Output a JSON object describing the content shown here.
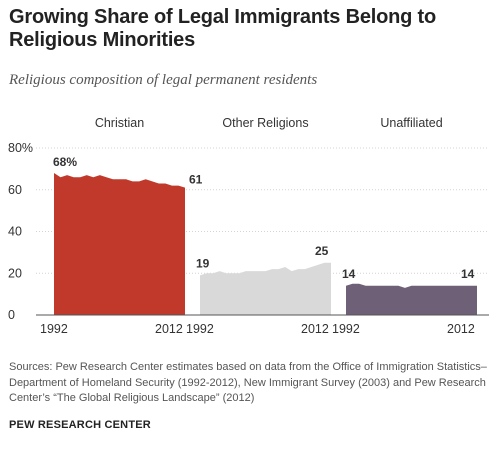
{
  "title": "Growing Share of Legal Immigrants Belong to Religious Minorities",
  "subtitle": "Religious composition of legal permanent residents",
  "source": "Sources: Pew Research Center estimates based on data from the Office of Immigration Statistics–Department of Homeland Security (1992-2012), New Immigrant Survey (2003) and Pew Research Center’s “The Global Religious Landscape” (2012)",
  "brand": "PEW RESEARCH CENTER",
  "chart_data": {
    "type": "area",
    "ylim": [
      0,
      80
    ],
    "y_ticks": [
      "80%",
      "60",
      "40",
      "20",
      "0"
    ],
    "y_tick_values": [
      80,
      60,
      40,
      20,
      0
    ],
    "x": [
      1992,
      1993,
      1994,
      1995,
      1996,
      1997,
      1998,
      1999,
      2000,
      2001,
      2002,
      2003,
      2004,
      2005,
      2006,
      2007,
      2008,
      2009,
      2010,
      2011,
      2012
    ],
    "x_tick_labels": [
      "1992",
      "2012"
    ],
    "grid": true,
    "series": [
      {
        "name": "Christian",
        "color": "#c0392b",
        "values": [
          68,
          66,
          67,
          66,
          66,
          67,
          66,
          67,
          66,
          65,
          65,
          65,
          64,
          64,
          65,
          64,
          63,
          63,
          62,
          62,
          61
        ],
        "start_label": "68%",
        "end_label": "61"
      },
      {
        "name": "Other Religions",
        "color": "#d9d9d9",
        "values": [
          19,
          20,
          20,
          21,
          20,
          20,
          20,
          21,
          21,
          21,
          21,
          22,
          22,
          23,
          21,
          22,
          22,
          23,
          24,
          25,
          25
        ],
        "start_label": "19",
        "end_label": "25"
      },
      {
        "name": "Unaffiliated",
        "color": "#6e6177",
        "values": [
          14,
          15,
          15,
          14,
          14,
          14,
          14,
          14,
          14,
          13,
          14,
          14,
          14,
          14,
          14,
          14,
          14,
          14,
          14,
          14,
          14
        ],
        "start_label": "14",
        "end_label": "14"
      }
    ]
  }
}
